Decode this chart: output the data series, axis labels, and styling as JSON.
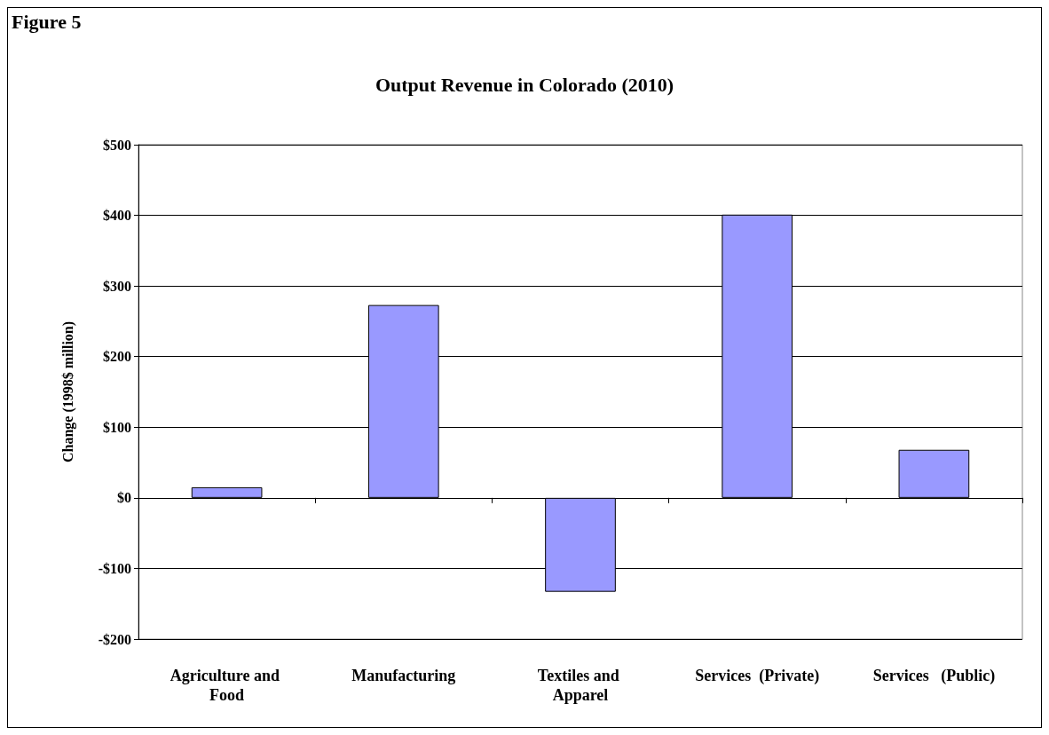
{
  "chart_data": {
    "type": "bar",
    "title": "Output Revenue in Colorado (2010)",
    "annotations": [
      "Figure 5"
    ],
    "ylabel": "Change (1998$ million)",
    "categories": [
      "Agriculture and Food",
      "Manufacturing",
      "Textiles and Apparel",
      "Services  (Private)",
      "Services   (Public)"
    ],
    "values": [
      15,
      273,
      -133,
      401,
      68
    ],
    "color": "#9999ff",
    "ylim": [
      -200,
      500
    ],
    "yticks": [
      {
        "value": -200,
        "label": "-$200"
      },
      {
        "value": -100,
        "label": "-$100"
      },
      {
        "value": 0,
        "label": "$0"
      },
      {
        "value": 100,
        "label": "$100"
      },
      {
        "value": 200,
        "label": "$200"
      },
      {
        "value": 300,
        "label": "$300"
      },
      {
        "value": 400,
        "label": "$400"
      },
      {
        "value": 500,
        "label": "$500"
      }
    ],
    "grid": "y"
  }
}
